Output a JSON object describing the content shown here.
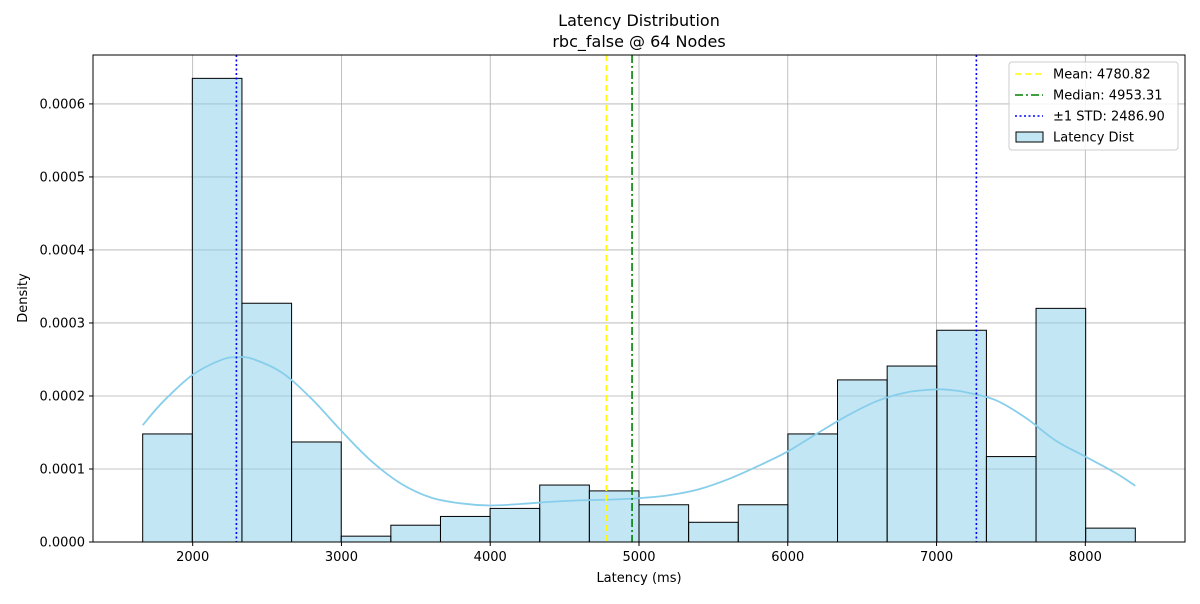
{
  "chart_data": {
    "type": "histogram",
    "title": "Latency Distribution",
    "subtitle": "rbc_false @ 64 Nodes",
    "xlabel": "Latency (ms)",
    "ylabel": "Density",
    "xlim": [
      1330,
      8670
    ],
    "ylim": [
      0,
      0.000667
    ],
    "xticks": [
      2000,
      3000,
      4000,
      5000,
      6000,
      7000,
      8000
    ],
    "yticks": [
      "0.0000",
      "0.0001",
      "0.0002",
      "0.0003",
      "0.0004",
      "0.0005",
      "0.0006"
    ],
    "grid": true,
    "legend_position": "top-right",
    "histogram": {
      "name": "Latency Dist",
      "color": "#87ceeb",
      "bin_start": 1664,
      "bin_width": 333.6,
      "densities": [
        0.000148,
        0.000635,
        0.000327,
        0.000137,
        8e-06,
        2.3e-05,
        3.5e-05,
        4.6e-05,
        7.8e-05,
        7e-05,
        5.1e-05,
        2.7e-05,
        5.1e-05,
        0.000148,
        0.000222,
        0.000241,
        0.00029,
        0.000117,
        0.00032,
        1.9e-05
      ]
    },
    "kde": {
      "color": "#87ceeb",
      "x": [
        1664,
        1800,
        2000,
        2200,
        2300,
        2400,
        2600,
        2800,
        3000,
        3200,
        3400,
        3600,
        3800,
        4000,
        4200,
        4400,
        4600,
        4800,
        5000,
        5200,
        5400,
        5600,
        5800,
        6000,
        6200,
        6400,
        6600,
        6800,
        7000,
        7100,
        7200,
        7400,
        7600,
        7800,
        8000,
        8200,
        8336
      ],
      "y": [
        0.00016,
        0.000192,
        0.000229,
        0.00025,
        0.000253,
        0.000251,
        0.000232,
        0.000196,
        0.000152,
        0.000111,
        8e-05,
        6.1e-05,
        5.3e-05,
        5e-05,
        5.2e-05,
        5.5e-05,
        5.7e-05,
        5.8e-05,
        6e-05,
        6.4e-05,
        7.2e-05,
        8.6e-05,
        0.000104,
        0.000124,
        0.000149,
        0.000173,
        0.000193,
        0.000205,
        0.000209,
        0.000208,
        0.000205,
        0.000194,
        0.00017,
        0.000139,
        0.000117,
        9.5e-05,
        7.7e-05
      ]
    },
    "lines": [
      {
        "label": "Mean: 4780.82",
        "x": 4780.82,
        "color": "#ffff00",
        "style": "dashed"
      },
      {
        "label": "Median: 4953.31",
        "x": 4953.31,
        "color": "#008000",
        "style": "dashdot"
      },
      {
        "label": "±1 STD: 2486.90",
        "x": 2293.92,
        "color": "#0000ff",
        "style": "dotted"
      },
      {
        "x": 7267.72,
        "color": "#0000ff",
        "style": "dotted"
      }
    ],
    "legend": [
      {
        "label": "Mean: 4780.82",
        "color": "#ffff00",
        "style": "dashed"
      },
      {
        "label": "Median: 4953.31",
        "color": "#008000",
        "style": "dashdot"
      },
      {
        "label": "±1 STD: 2486.90",
        "color": "#0000ff",
        "style": "dotted"
      },
      {
        "label": "Latency Dist",
        "color": "#87ceeb",
        "style": "patch"
      }
    ]
  }
}
